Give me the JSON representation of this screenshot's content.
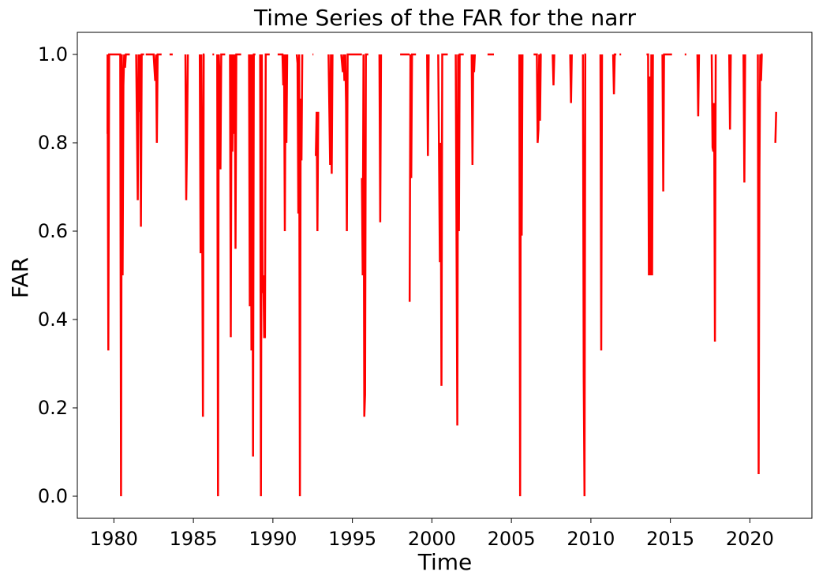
{
  "chart_data": {
    "type": "line",
    "title": "Time Series of the FAR for the narr",
    "xlabel": "Time",
    "ylabel": "FAR",
    "xlim": [
      1977.7,
      2023.9
    ],
    "ylim": [
      -0.05,
      1.05
    ],
    "xticks": [
      1980,
      1985,
      1990,
      1995,
      2000,
      2005,
      2010,
      2015,
      2020
    ],
    "yticks": [
      0.0,
      0.2,
      0.4,
      0.6,
      0.8,
      1.0
    ],
    "ytick_labels": [
      "0.0",
      "0.2",
      "0.4",
      "0.6",
      "0.8",
      "1.0"
    ],
    "grid": false,
    "legend": "none",
    "line_color": "#ff0000",
    "series": [
      {
        "segments": [
          [
            [
              1979.6,
              0.82
            ],
            [
              1979.6,
              1.0
            ],
            [
              1979.65,
              0.33
            ],
            [
              1979.7,
              1.0
            ],
            [
              1980.4,
              1.0
            ],
            [
              1980.45,
              0.0
            ],
            [
              1980.5,
              1.0
            ],
            [
              1980.55,
              0.5
            ],
            [
              1980.6,
              0.93
            ],
            [
              1980.65,
              1.0
            ],
            [
              1980.7,
              0.97
            ],
            [
              1980.75,
              1.0
            ],
            [
              1981.0,
              1.0
            ]
          ],
          [
            [
              1981.4,
              1.0
            ],
            [
              1981.5,
              0.67
            ],
            [
              1981.55,
              1.0
            ],
            [
              1981.6,
              0.87
            ],
            [
              1981.65,
              1.0
            ],
            [
              1981.7,
              0.61
            ],
            [
              1981.75,
              1.0
            ],
            [
              1981.9,
              1.0
            ]
          ],
          [
            [
              1982.0,
              1.0
            ],
            [
              1982.5,
              1.0
            ],
            [
              1982.6,
              0.94
            ],
            [
              1982.65,
              1.0
            ],
            [
              1982.7,
              0.8
            ],
            [
              1982.75,
              1.0
            ],
            [
              1983.0,
              1.0
            ]
          ],
          [
            [
              1983.5,
              1.0
            ],
            [
              1983.7,
              1.0
            ]
          ],
          [
            [
              1984.5,
              1.0
            ],
            [
              1984.55,
              0.67
            ],
            [
              1984.6,
              0.8
            ],
            [
              1984.65,
              1.0
            ]
          ],
          [
            [
              1985.4,
              1.0
            ],
            [
              1985.45,
              0.55
            ],
            [
              1985.5,
              1.0
            ],
            [
              1985.55,
              0.66
            ],
            [
              1985.6,
              0.18
            ],
            [
              1985.65,
              1.0
            ],
            [
              1985.7,
              1.0
            ]
          ],
          [
            [
              1986.2,
              1.0
            ],
            [
              1986.3,
              1.0
            ]
          ],
          [
            [
              1986.5,
              1.0
            ],
            [
              1986.55,
              0.0
            ],
            [
              1986.6,
              1.0
            ],
            [
              1986.65,
              0.94
            ],
            [
              1986.7,
              0.74
            ],
            [
              1986.75,
              1.0
            ],
            [
              1987.0,
              1.0
            ]
          ],
          [
            [
              1987.3,
              1.0
            ],
            [
              1987.35,
              0.36
            ],
            [
              1987.4,
              1.0
            ],
            [
              1987.45,
              0.78
            ],
            [
              1987.5,
              1.0
            ],
            [
              1987.55,
              0.82
            ],
            [
              1987.6,
              1.0
            ],
            [
              1987.65,
              0.56
            ],
            [
              1987.7,
              1.0
            ],
            [
              1988.0,
              1.0
            ]
          ],
          [
            [
              1988.5,
              1.0
            ],
            [
              1988.55,
              0.43
            ],
            [
              1988.6,
              1.0
            ],
            [
              1988.65,
              0.33
            ],
            [
              1988.7,
              1.0
            ],
            [
              1988.75,
              0.09
            ],
            [
              1988.8,
              1.0
            ],
            [
              1988.9,
              1.0
            ]
          ],
          [
            [
              1989.2,
              1.0
            ],
            [
              1989.25,
              0.0
            ],
            [
              1989.3,
              1.0
            ],
            [
              1989.35,
              0.46
            ],
            [
              1989.4,
              0.5
            ],
            [
              1989.45,
              0.36
            ],
            [
              1989.5,
              0.36
            ],
            [
              1989.55,
              1.0
            ],
            [
              1989.8,
              1.0
            ]
          ],
          [
            [
              1990.3,
              1.0
            ],
            [
              1990.6,
              1.0
            ],
            [
              1990.65,
              0.93
            ],
            [
              1990.7,
              1.0
            ],
            [
              1990.75,
              0.6
            ],
            [
              1990.8,
              1.0
            ],
            [
              1990.85,
              0.8
            ],
            [
              1990.9,
              1.0
            ]
          ],
          [
            [
              1991.5,
              1.0
            ],
            [
              1991.55,
              0.98
            ],
            [
              1991.6,
              0.64
            ],
            [
              1991.65,
              1.0
            ],
            [
              1991.7,
              0.0
            ],
            [
              1991.75,
              0.9
            ],
            [
              1991.8,
              0.76
            ],
            [
              1991.85,
              1.0
            ]
          ],
          [
            [
              1992.5,
              1.0
            ],
            [
              1992.55,
              1.0
            ]
          ],
          [
            [
              1992.7,
              0.77
            ],
            [
              1992.75,
              0.87
            ],
            [
              1992.8,
              0.6
            ],
            [
              1992.85,
              0.87
            ]
          ],
          [
            [
              1993.5,
              1.0
            ],
            [
              1993.6,
              0.75
            ],
            [
              1993.65,
              1.0
            ],
            [
              1993.7,
              0.73
            ],
            [
              1993.75,
              1.0
            ]
          ],
          [
            [
              1994.3,
              1.0
            ],
            [
              1994.4,
              0.96
            ],
            [
              1994.45,
              1.0
            ],
            [
              1994.5,
              0.94
            ],
            [
              1994.55,
              1.0
            ],
            [
              1994.6,
              0.89
            ],
            [
              1994.65,
              0.6
            ],
            [
              1994.7,
              1.0
            ],
            [
              1995.6,
              1.0
            ]
          ],
          [
            [
              1995.6,
              0.72
            ],
            [
              1995.65,
              0.5
            ],
            [
              1995.7,
              1.0
            ],
            [
              1995.75,
              0.18
            ],
            [
              1995.8,
              0.23
            ],
            [
              1995.85,
              1.0
            ],
            [
              1996.0,
              1.0
            ]
          ],
          [
            [
              1996.7,
              1.0
            ],
            [
              1996.75,
              0.62
            ],
            [
              1996.8,
              1.0
            ]
          ],
          [
            [
              1998.0,
              1.0
            ],
            [
              1998.6,
              1.0
            ]
          ],
          [
            [
              1998.6,
              0.44
            ],
            [
              1998.65,
              1.0
            ],
            [
              1998.7,
              0.72
            ],
            [
              1998.75,
              1.0
            ],
            [
              1999.0,
              1.0
            ]
          ],
          [
            [
              1999.7,
              1.0
            ],
            [
              1999.75,
              0.77
            ],
            [
              1999.8,
              1.0
            ]
          ],
          [
            [
              2000.4,
              1.0
            ],
            [
              2000.5,
              0.53
            ],
            [
              2000.55,
              0.8
            ],
            [
              2000.6,
              0.25
            ],
            [
              2000.65,
              1.0
            ],
            [
              2001.0,
              1.0
            ]
          ],
          [
            [
              2001.5,
              1.0
            ],
            [
              2001.6,
              0.16
            ],
            [
              2001.65,
              1.0
            ],
            [
              2001.7,
              0.6
            ],
            [
              2001.75,
              1.0
            ],
            [
              2002.0,
              1.0
            ]
          ],
          [
            [
              2002.5,
              1.0
            ],
            [
              2002.55,
              0.75
            ],
            [
              2002.6,
              1.0
            ],
            [
              2002.65,
              0.96
            ],
            [
              2002.7,
              1.0
            ]
          ],
          [
            [
              2003.5,
              1.0
            ],
            [
              2003.9,
              1.0
            ]
          ],
          [
            [
              2005.5,
              1.0
            ],
            [
              2005.55,
              0.0
            ],
            [
              2005.6,
              1.0
            ],
            [
              2005.65,
              0.59
            ],
            [
              2005.7,
              1.0
            ]
          ],
          [
            [
              2006.4,
              1.0
            ],
            [
              2006.6,
              1.0
            ],
            [
              2006.65,
              0.8
            ],
            [
              2006.7,
              0.83
            ],
            [
              2006.75,
              1.0
            ],
            [
              2006.8,
              0.85
            ],
            [
              2006.85,
              1.0
            ],
            [
              2006.9,
              1.0
            ]
          ],
          [
            [
              2007.6,
              1.0
            ],
            [
              2007.65,
              0.93
            ],
            [
              2007.7,
              1.0
            ]
          ],
          [
            [
              2008.7,
              1.0
            ],
            [
              2008.75,
              0.89
            ],
            [
              2008.8,
              1.0
            ]
          ],
          [
            [
              2009.5,
              1.0
            ],
            [
              2009.55,
              0.27
            ],
            [
              2009.6,
              0.0
            ],
            [
              2009.65,
              1.0
            ],
            [
              2009.7,
              1.0
            ]
          ],
          [
            [
              2010.6,
              1.0
            ],
            [
              2010.65,
              0.33
            ],
            [
              2010.7,
              1.0
            ]
          ],
          [
            [
              2011.4,
              1.0
            ],
            [
              2011.45,
              0.91
            ],
            [
              2011.5,
              1.0
            ],
            [
              2011.6,
              1.0
            ]
          ],
          [
            [
              2011.8,
              1.0
            ],
            [
              2011.9,
              1.0
            ]
          ],
          [
            [
              2013.5,
              1.0
            ],
            [
              2013.6,
              1.0
            ],
            [
              2013.65,
              0.5
            ],
            [
              2013.7,
              0.95
            ],
            [
              2013.75,
              0.5
            ],
            [
              2013.8,
              1.0
            ],
            [
              2013.85,
              0.5
            ],
            [
              2013.9,
              1.0
            ]
          ],
          [
            [
              2014.5,
              1.0
            ],
            [
              2014.55,
              0.69
            ],
            [
              2014.6,
              1.0
            ],
            [
              2015.1,
              1.0
            ]
          ],
          [
            [
              2015.9,
              1.0
            ],
            [
              2016.0,
              1.0
            ]
          ],
          [
            [
              2016.7,
              1.0
            ],
            [
              2016.75,
              0.86
            ],
            [
              2016.8,
              1.0
            ]
          ],
          [
            [
              2017.6,
              1.0
            ],
            [
              2017.65,
              0.79
            ],
            [
              2017.7,
              0.78
            ],
            [
              2017.75,
              0.89
            ],
            [
              2017.8,
              0.35
            ],
            [
              2017.85,
              1.0
            ]
          ],
          [
            [
              2018.7,
              1.0
            ],
            [
              2018.75,
              0.83
            ],
            [
              2018.8,
              1.0
            ]
          ],
          [
            [
              2019.6,
              1.0
            ],
            [
              2019.65,
              0.71
            ],
            [
              2019.7,
              1.0
            ]
          ],
          [
            [
              2020.5,
              1.0
            ],
            [
              2020.55,
              0.05
            ],
            [
              2020.6,
              0.73
            ],
            [
              2020.65,
              1.0
            ],
            [
              2020.7,
              0.94
            ],
            [
              2020.75,
              1.0
            ],
            [
              2020.8,
              1.0
            ]
          ],
          [
            [
              2021.6,
              0.8
            ],
            [
              2021.65,
              0.87
            ]
          ]
        ]
      }
    ]
  }
}
